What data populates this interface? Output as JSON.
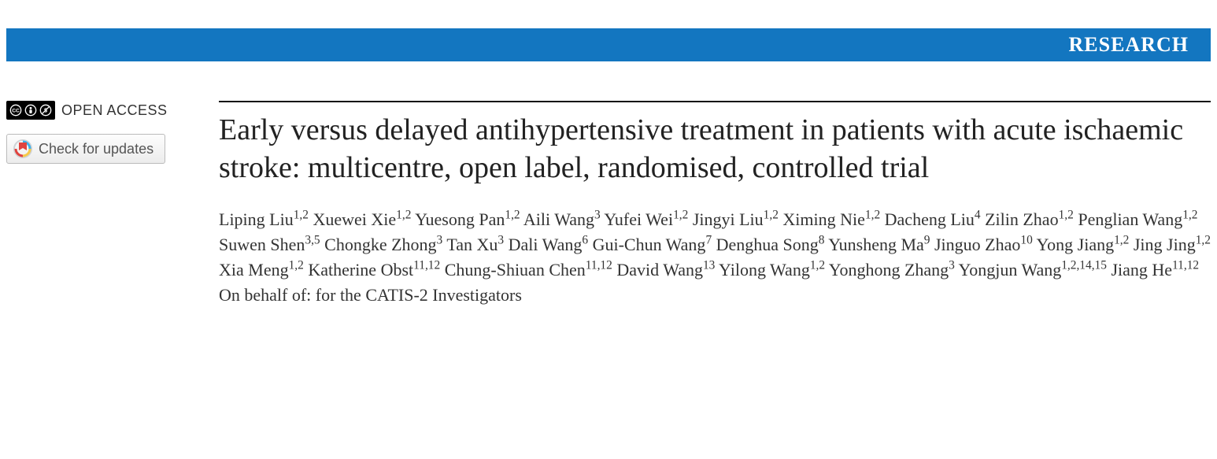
{
  "colors": {
    "banner_bg": "#1376c0",
    "banner_text": "#ffffff",
    "title_rule": "#111111",
    "body_text": "#222222",
    "author_text": "#333333",
    "cc_badge_bg": "#000000",
    "btn_border": "#bbbbbb",
    "btn_text": "#555555"
  },
  "banner": {
    "label": "RESEARCH"
  },
  "sidebar": {
    "open_access_label": "OPEN ACCESS",
    "cc_icons": [
      "cc",
      "by",
      "nc"
    ],
    "check_updates_label": "Check for updates"
  },
  "article": {
    "title": "Early versus delayed antihypertensive treatment in patients with acute ischaemic stroke: multicentre, open label, randomised, controlled trial",
    "authors": [
      {
        "name": "Liping Liu",
        "affil": "1,2"
      },
      {
        "name": "Xuewei Xie",
        "affil": "1,2"
      },
      {
        "name": "Yuesong Pan",
        "affil": "1,2"
      },
      {
        "name": "Aili Wang",
        "affil": "3"
      },
      {
        "name": "Yufei Wei",
        "affil": "1,2"
      },
      {
        "name": "Jingyi Liu",
        "affil": "1,2"
      },
      {
        "name": "Ximing Nie",
        "affil": "1,2"
      },
      {
        "name": "Dacheng Liu",
        "affil": "4"
      },
      {
        "name": "Zilin Zhao",
        "affil": "1,2"
      },
      {
        "name": "Penglian Wang",
        "affil": "1,2"
      },
      {
        "name": "Suwen Shen",
        "affil": "3,5"
      },
      {
        "name": "Chongke Zhong",
        "affil": "3"
      },
      {
        "name": "Tan Xu",
        "affil": "3"
      },
      {
        "name": "Dali Wang",
        "affil": "6"
      },
      {
        "name": "Gui-Chun Wang",
        "affil": "7"
      },
      {
        "name": "Denghua Song",
        "affil": "8"
      },
      {
        "name": "Yunsheng Ma",
        "affil": "9"
      },
      {
        "name": "Jinguo Zhao",
        "affil": "10"
      },
      {
        "name": "Yong Jiang",
        "affil": "1,2"
      },
      {
        "name": "Jing Jing",
        "affil": "1,2"
      },
      {
        "name": "Xia Meng",
        "affil": "1,2"
      },
      {
        "name": "Katherine Obst",
        "affil": "11,12"
      },
      {
        "name": "Chung-Shiuan Chen",
        "affil": "11,12"
      },
      {
        "name": "David Wang",
        "affil": "13"
      },
      {
        "name": "Yilong Wang",
        "affil": "1,2"
      },
      {
        "name": "Yonghong Zhang",
        "affil": "3"
      },
      {
        "name": "Yongjun Wang",
        "affil": "1,2,14,15"
      },
      {
        "name": "Jiang He",
        "affil": "11,12"
      }
    ],
    "authors_trailer": "On behalf of: for the CATIS-2 Investigators"
  }
}
